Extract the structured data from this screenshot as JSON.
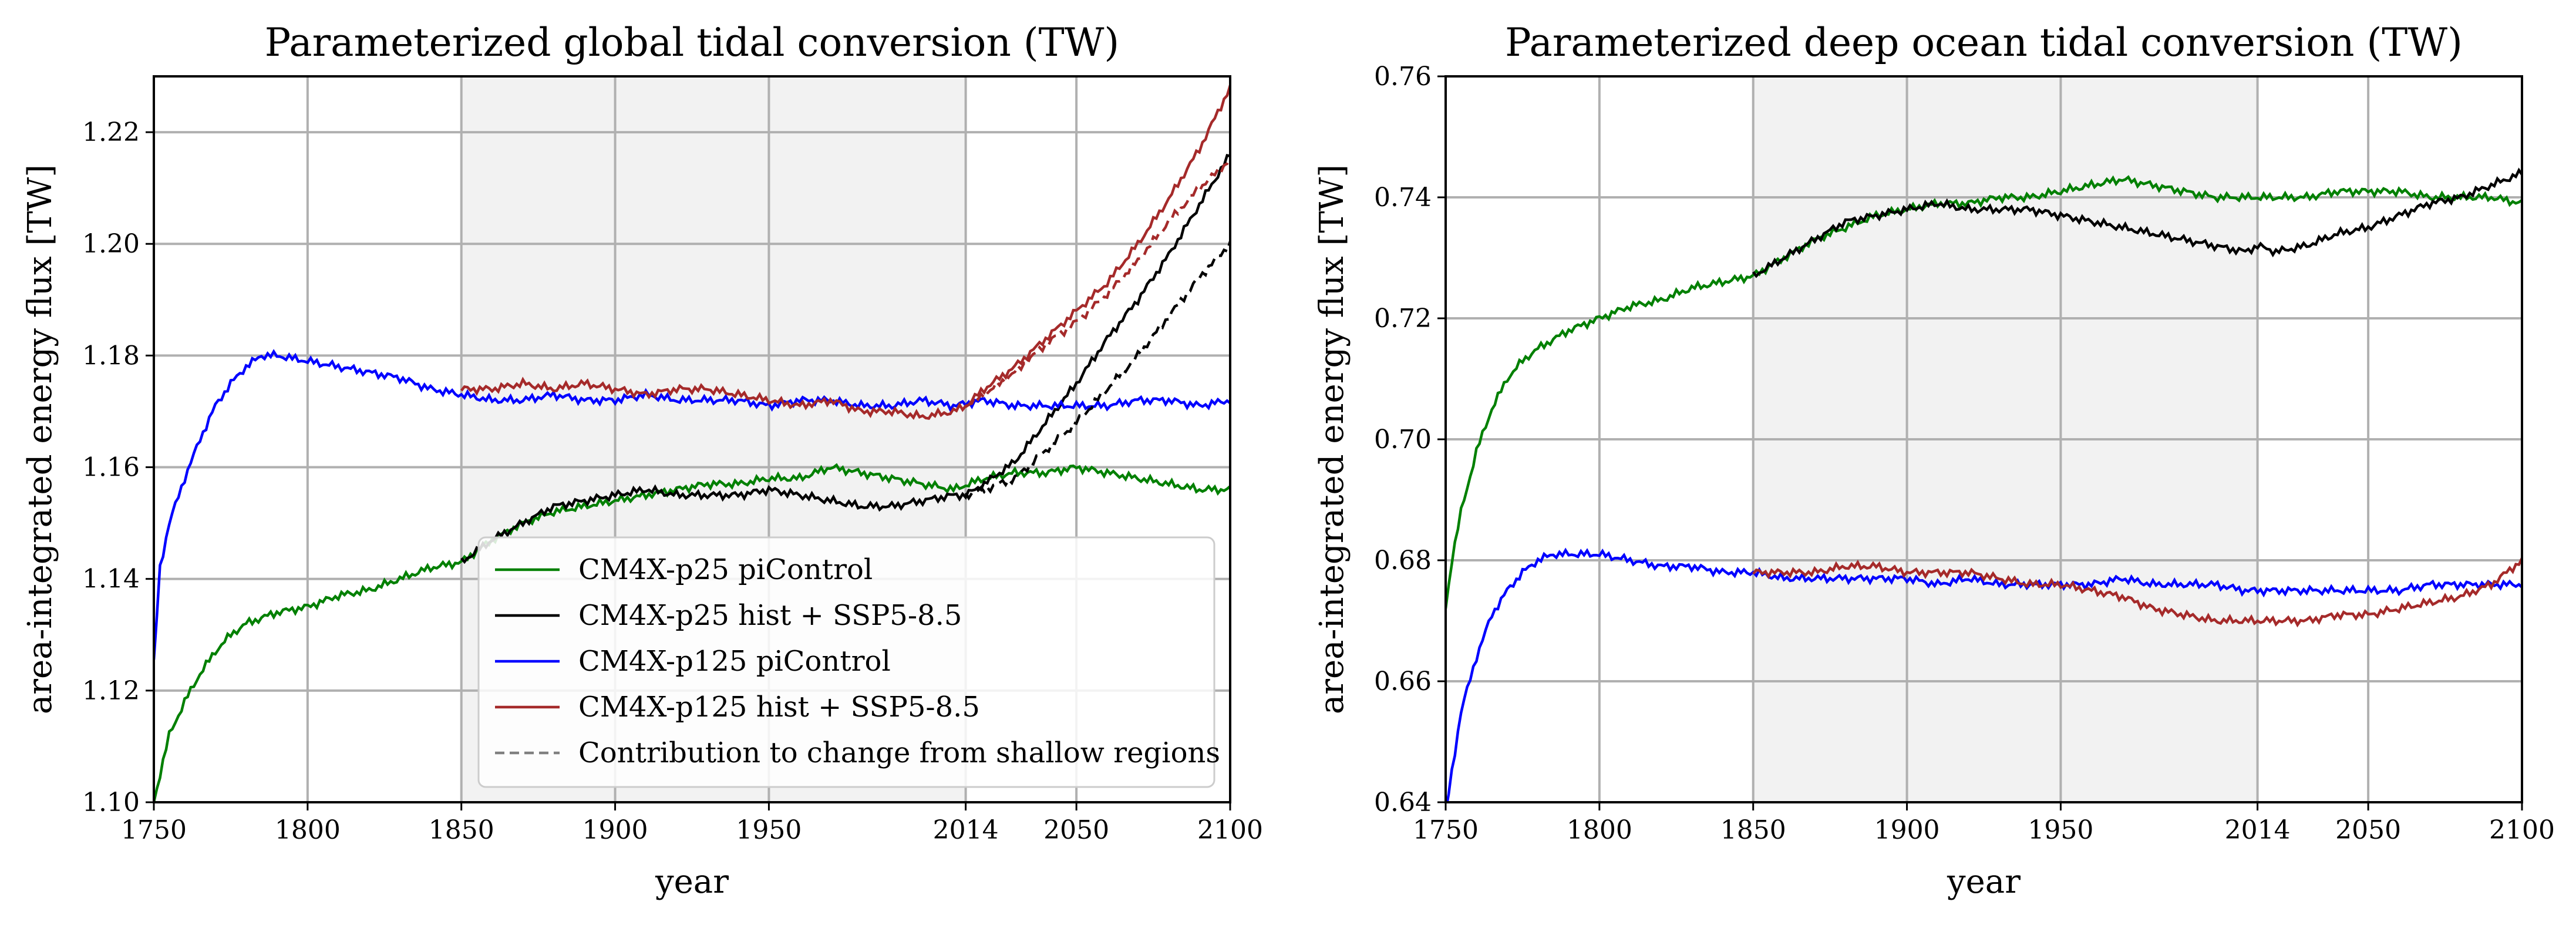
{
  "chart_data": [
    {
      "type": "line",
      "title": "Parameterized global tidal conversion (TW)",
      "xlabel": "year",
      "ylabel": "area-integrated energy flux [TW]",
      "xlim": [
        1750,
        2100
      ],
      "ylim": [
        1.1,
        1.23
      ],
      "xticks": [
        1750,
        1800,
        1850,
        1900,
        1950,
        2014,
        2050,
        2100
      ],
      "xtick_labels": [
        "1750",
        "1800",
        "1850",
        "1900",
        "1950",
        "2014",
        "2050",
        "2100"
      ],
      "yticks": [
        1.1,
        1.12,
        1.14,
        1.16,
        1.18,
        1.2,
        1.22
      ],
      "ytick_labels": [
        "1.10",
        "1.12",
        "1.14",
        "1.16",
        "1.18",
        "1.20",
        "1.22"
      ],
      "grid": true,
      "shaded_region": [
        1850,
        2014
      ],
      "legend_position": "bottom-center",
      "series": [
        {
          "name": "CM4X-p25 piControl",
          "color": "#008000",
          "style": "solid",
          "x": [
            1750,
            1752,
            1755,
            1760,
            1765,
            1770,
            1775,
            1780,
            1790,
            1800,
            1810,
            1820,
            1830,
            1840,
            1850,
            1860,
            1870,
            1880,
            1890,
            1900,
            1910,
            1920,
            1930,
            1940,
            1950,
            1960,
            1970,
            1980,
            1990,
            2000,
            2010,
            2020,
            2030,
            2040,
            2050,
            2060,
            2070,
            2080,
            2090,
            2100
          ],
          "y": [
            1.1,
            1.105,
            1.112,
            1.118,
            1.123,
            1.127,
            1.13,
            1.132,
            1.134,
            1.135,
            1.137,
            1.138,
            1.14,
            1.142,
            1.143,
            1.147,
            1.15,
            1.152,
            1.153,
            1.154,
            1.155,
            1.156,
            1.157,
            1.157,
            1.158,
            1.158,
            1.16,
            1.159,
            1.158,
            1.157,
            1.156,
            1.158,
            1.159,
            1.159,
            1.16,
            1.159,
            1.158,
            1.157,
            1.156,
            1.156
          ]
        },
        {
          "name": "CM4X-p25 hist + SSP5-8.5",
          "color": "#000000",
          "style": "solid",
          "x": [
            1850,
            1860,
            1870,
            1880,
            1890,
            1900,
            1910,
            1920,
            1930,
            1940,
            1950,
            1960,
            1970,
            1980,
            1990,
            2000,
            2010,
            2014,
            2020,
            2030,
            2040,
            2050,
            2060,
            2070,
            2080,
            2090,
            2100
          ],
          "y": [
            1.143,
            1.147,
            1.15,
            1.153,
            1.154,
            1.155,
            1.156,
            1.155,
            1.155,
            1.155,
            1.156,
            1.155,
            1.154,
            1.153,
            1.153,
            1.154,
            1.155,
            1.155,
            1.157,
            1.161,
            1.168,
            1.175,
            1.183,
            1.19,
            1.198,
            1.207,
            1.216
          ]
        },
        {
          "name": "CM4X-p125 piControl",
          "color": "#0000ff",
          "style": "solid",
          "x": [
            1750,
            1752,
            1755,
            1760,
            1765,
            1770,
            1775,
            1780,
            1785,
            1790,
            1800,
            1810,
            1820,
            1830,
            1840,
            1850,
            1860,
            1870,
            1880,
            1890,
            1900,
            1910,
            1920,
            1930,
            1940,
            1950,
            1960,
            1970,
            1980,
            1990,
            2000,
            2010,
            2020,
            2030,
            2040,
            2050,
            2060,
            2070,
            2080,
            2090,
            2100
          ],
          "y": [
            1.125,
            1.142,
            1.15,
            1.158,
            1.165,
            1.171,
            1.175,
            1.178,
            1.18,
            1.18,
            1.179,
            1.178,
            1.177,
            1.176,
            1.174,
            1.173,
            1.172,
            1.172,
            1.173,
            1.172,
            1.172,
            1.173,
            1.172,
            1.172,
            1.172,
            1.171,
            1.172,
            1.172,
            1.171,
            1.171,
            1.172,
            1.171,
            1.172,
            1.171,
            1.171,
            1.171,
            1.171,
            1.172,
            1.172,
            1.171,
            1.172
          ]
        },
        {
          "name": "CM4X-p125 hist + SSP5-8.5",
          "color": "#a52a2a",
          "style": "solid",
          "x": [
            1850,
            1860,
            1870,
            1880,
            1890,
            1900,
            1910,
            1920,
            1930,
            1940,
            1950,
            1960,
            1970,
            1980,
            1990,
            2000,
            2010,
            2014,
            2020,
            2030,
            2040,
            2050,
            2060,
            2070,
            2080,
            2090,
            2100
          ],
          "y": [
            1.174,
            1.174,
            1.175,
            1.174,
            1.175,
            1.174,
            1.173,
            1.174,
            1.174,
            1.173,
            1.172,
            1.171,
            1.172,
            1.17,
            1.17,
            1.169,
            1.17,
            1.171,
            1.174,
            1.178,
            1.183,
            1.188,
            1.193,
            1.2,
            1.208,
            1.217,
            1.228
          ]
        },
        {
          "name": "Contribution to change from shallow regions",
          "color": "#808080",
          "style": "dashed",
          "x": [],
          "y": []
        },
        {
          "name": "",
          "color": "#a52a2a",
          "style": "dashed",
          "x": [
            2014,
            2020,
            2030,
            2040,
            2050,
            2060,
            2070,
            2080,
            2090,
            2100
          ],
          "y": [
            1.171,
            1.173,
            1.177,
            1.182,
            1.186,
            1.191,
            1.197,
            1.204,
            1.21,
            1.215
          ]
        },
        {
          "name": "",
          "color": "#000000",
          "style": "dashed",
          "x": [
            2014,
            2020,
            2030,
            2040,
            2050,
            2060,
            2070,
            2080,
            2090,
            2100
          ],
          "y": [
            1.155,
            1.156,
            1.158,
            1.163,
            1.168,
            1.174,
            1.18,
            1.187,
            1.194,
            1.2
          ]
        }
      ]
    },
    {
      "type": "line",
      "title": "Parameterized deep ocean tidal conversion (TW)",
      "xlabel": "year",
      "ylabel": "area-integrated energy flux [TW]",
      "xlim": [
        1750,
        2100
      ],
      "ylim": [
        0.64,
        0.76
      ],
      "xticks": [
        1750,
        1800,
        1850,
        1900,
        1950,
        2014,
        2050,
        2100
      ],
      "xtick_labels": [
        "1750",
        "1800",
        "1850",
        "1900",
        "1950",
        "2014",
        "2050",
        "2100"
      ],
      "yticks": [
        0.64,
        0.66,
        0.68,
        0.7,
        0.72,
        0.74,
        0.76
      ],
      "ytick_labels": [
        "0.64",
        "0.66",
        "0.68",
        "0.70",
        "0.72",
        "0.74",
        "0.76"
      ],
      "grid": true,
      "shaded_region": [
        1850,
        2014
      ],
      "series": [
        {
          "name": "CM4X-p25 piControl",
          "color": "#008000",
          "style": "solid",
          "x": [
            1750,
            1752,
            1755,
            1760,
            1765,
            1770,
            1775,
            1780,
            1790,
            1800,
            1810,
            1820,
            1830,
            1840,
            1850,
            1860,
            1870,
            1880,
            1890,
            1900,
            1910,
            1920,
            1930,
            1940,
            1950,
            1960,
            1970,
            1980,
            1990,
            2000,
            2010,
            2020,
            2030,
            2040,
            2050,
            2060,
            2070,
            2080,
            2090,
            2100
          ],
          "y": [
            0.672,
            0.68,
            0.688,
            0.698,
            0.705,
            0.71,
            0.713,
            0.715,
            0.718,
            0.72,
            0.722,
            0.723,
            0.725,
            0.726,
            0.727,
            0.73,
            0.733,
            0.735,
            0.737,
            0.738,
            0.739,
            0.739,
            0.74,
            0.74,
            0.741,
            0.742,
            0.743,
            0.742,
            0.741,
            0.74,
            0.74,
            0.74,
            0.74,
            0.741,
            0.741,
            0.741,
            0.74,
            0.74,
            0.74,
            0.739
          ]
        },
        {
          "name": "CM4X-p25 hist + SSP5-8.5",
          "color": "#000000",
          "style": "solid",
          "x": [
            1850,
            1860,
            1870,
            1880,
            1890,
            1900,
            1910,
            1920,
            1930,
            1940,
            1950,
            1960,
            1970,
            1980,
            1990,
            2000,
            2010,
            2014,
            2020,
            2030,
            2040,
            2050,
            2060,
            2070,
            2080,
            2090,
            2100
          ],
          "y": [
            0.727,
            0.73,
            0.733,
            0.736,
            0.737,
            0.738,
            0.739,
            0.738,
            0.738,
            0.738,
            0.737,
            0.736,
            0.735,
            0.734,
            0.733,
            0.732,
            0.731,
            0.732,
            0.731,
            0.732,
            0.734,
            0.735,
            0.737,
            0.739,
            0.74,
            0.742,
            0.744
          ]
        },
        {
          "name": "CM4X-p125 piControl",
          "color": "#0000ff",
          "style": "solid",
          "x": [
            1750,
            1752,
            1755,
            1760,
            1765,
            1770,
            1775,
            1780,
            1785,
            1790,
            1800,
            1810,
            1820,
            1830,
            1840,
            1850,
            1860,
            1870,
            1880,
            1890,
            1900,
            1910,
            1920,
            1930,
            1940,
            1950,
            1960,
            1970,
            1980,
            1990,
            2000,
            2010,
            2020,
            2030,
            2040,
            2050,
            2060,
            2070,
            2080,
            2090,
            2100
          ],
          "y": [
            0.638,
            0.645,
            0.655,
            0.664,
            0.671,
            0.675,
            0.678,
            0.68,
            0.681,
            0.681,
            0.681,
            0.68,
            0.679,
            0.679,
            0.678,
            0.678,
            0.677,
            0.677,
            0.677,
            0.677,
            0.677,
            0.676,
            0.677,
            0.676,
            0.676,
            0.676,
            0.676,
            0.677,
            0.676,
            0.676,
            0.676,
            0.675,
            0.675,
            0.675,
            0.675,
            0.675,
            0.675,
            0.676,
            0.676,
            0.676,
            0.676
          ]
        },
        {
          "name": "CM4X-p125 hist + SSP5-8.5",
          "color": "#a52a2a",
          "style": "solid",
          "x": [
            1850,
            1860,
            1870,
            1880,
            1890,
            1900,
            1910,
            1920,
            1930,
            1940,
            1950,
            1960,
            1970,
            1980,
            1990,
            2000,
            2010,
            2014,
            2020,
            2030,
            2040,
            2050,
            2060,
            2070,
            2080,
            2090,
            2100
          ],
          "y": [
            0.678,
            0.678,
            0.678,
            0.679,
            0.679,
            0.678,
            0.678,
            0.678,
            0.677,
            0.676,
            0.676,
            0.675,
            0.674,
            0.672,
            0.671,
            0.67,
            0.67,
            0.67,
            0.67,
            0.67,
            0.671,
            0.671,
            0.672,
            0.673,
            0.674,
            0.676,
            0.68
          ]
        }
      ]
    }
  ]
}
